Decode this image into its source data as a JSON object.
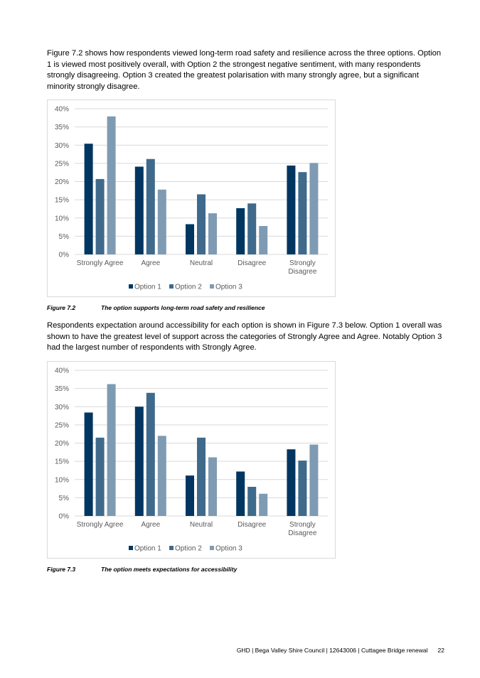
{
  "paragraphs": [
    "Figure 7.2 shows how respondents viewed long-term road safety and resilience across the three options. Option 1 is viewed most positively overall, with Option 2 the strongest negative sentiment, with many respondents strongly disagreeing. Option 3 created the greatest polarisation with many strongly agree, but a significant minority strongly disagree.",
    "Respondents expectation around accessibility for each option is shown in Figure 7.3 below. Option 1 overall was shown to have the greatest level of support across the categories of Strongly Agree and Agree.  Notably Option 3 had the largest number of respondents with Strongly Agree."
  ],
  "captions": [
    {
      "num": "Figure 7.2",
      "text": "The option supports long-term road safety and resilience"
    },
    {
      "num": "Figure 7.3",
      "text": "The option meets expectations for accessibility"
    }
  ],
  "footer": {
    "text": "GHD | Bega Valley Shire Council | 12643006 | Cuttagee Bridge renewal",
    "page": "22"
  },
  "chart_data": [
    {
      "type": "bar",
      "title": "",
      "categories": [
        [
          "Strongly Agree"
        ],
        [
          "Agree"
        ],
        [
          "Neutral"
        ],
        [
          "Disagree"
        ],
        [
          "Strongly",
          "Disagree"
        ]
      ],
      "yticks": [
        "0%",
        "5%",
        "10%",
        "15%",
        "20%",
        "25%",
        "30%",
        "35%",
        "40%"
      ],
      "ylim": [
        0,
        40
      ],
      "grid": true,
      "legend": "bottom",
      "series": [
        {
          "name": "Option 1",
          "color": "#003660",
          "values": [
            30.4,
            24.1,
            8.3,
            12.7,
            24.4
          ]
        },
        {
          "name": "Option 2",
          "color": "#3f6a8c",
          "values": [
            20.7,
            26.2,
            16.5,
            14.0,
            22.6
          ]
        },
        {
          "name": "Option 3",
          "color": "#7f9bb3",
          "values": [
            37.9,
            17.8,
            11.3,
            7.8,
            25.1
          ]
        }
      ]
    },
    {
      "type": "bar",
      "title": "",
      "categories": [
        [
          "Strongly Agree"
        ],
        [
          "Agree"
        ],
        [
          "Neutral"
        ],
        [
          "Disagree"
        ],
        [
          "Strongly",
          "Disagree"
        ]
      ],
      "yticks": [
        "0%",
        "5%",
        "10%",
        "15%",
        "20%",
        "25%",
        "30%",
        "35%",
        "40%"
      ],
      "ylim": [
        0,
        40
      ],
      "grid": true,
      "legend": "bottom",
      "series": [
        {
          "name": "Option 1",
          "color": "#003660",
          "values": [
            28.4,
            30.0,
            11.1,
            12.2,
            18.3
          ]
        },
        {
          "name": "Option 2",
          "color": "#3f6a8c",
          "values": [
            21.5,
            33.8,
            21.5,
            8.0,
            15.2
          ]
        },
        {
          "name": "Option 3",
          "color": "#7f9bb3",
          "values": [
            36.2,
            22.0,
            16.1,
            6.1,
            19.6
          ]
        }
      ]
    }
  ]
}
